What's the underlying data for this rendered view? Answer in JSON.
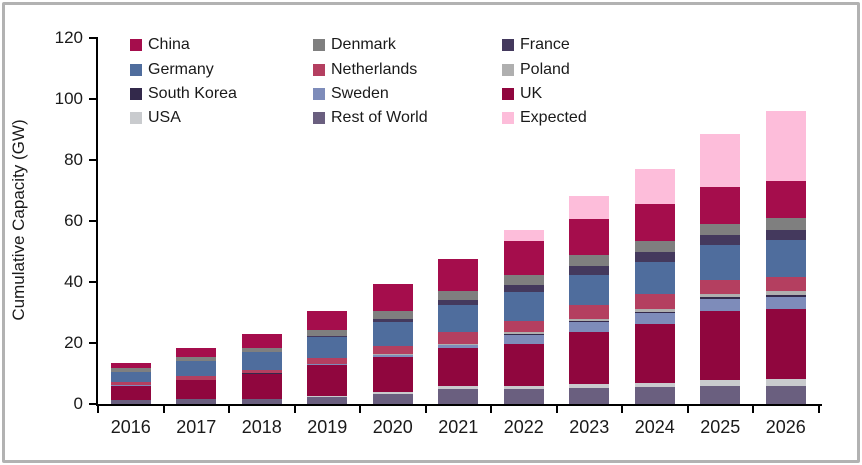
{
  "figure": {
    "background": "#ffffff",
    "border_color": "#b2b2b2"
  },
  "chart_data": {
    "type": "bar",
    "stacked": true,
    "title": "",
    "xlabel": "",
    "ylabel": "Cumulative Capacity (GW)",
    "ylim": [
      0,
      120
    ],
    "yticks": [
      0,
      20,
      40,
      60,
      80,
      100,
      120
    ],
    "grid": false,
    "legend_position": "top-left, 3 columns",
    "categories": [
      "2016",
      "2017",
      "2018",
      "2019",
      "2020",
      "2021",
      "2022",
      "2023",
      "2024",
      "2025",
      "2026"
    ],
    "series": [
      {
        "name": "China",
        "color": "#A50D4C",
        "values": [
          1.6,
          2.9,
          4.6,
          6.4,
          9.0,
          10.3,
          11.2,
          11.8,
          12.1,
          12.1,
          12.1
        ]
      },
      {
        "name": "Denmark",
        "color": "#7F7F7F",
        "values": [
          1.3,
          1.3,
          1.4,
          1.7,
          2.6,
          3.0,
          3.3,
          3.5,
          3.7,
          3.8,
          3.8
        ]
      },
      {
        "name": "France",
        "color": "#44395D",
        "values": [
          0,
          0,
          0,
          0.3,
          1.0,
          1.9,
          2.5,
          3.0,
          3.1,
          3.2,
          3.3
        ]
      },
      {
        "name": "Germany",
        "color": "#4F6D9D",
        "values": [
          3.4,
          5.0,
          6.0,
          7.0,
          7.7,
          8.8,
          9.3,
          9.9,
          10.6,
          11.5,
          12.1
        ]
      },
      {
        "name": "Netherlands",
        "color": "#B43F60",
        "values": [
          1.1,
          1.1,
          1.1,
          2.0,
          2.8,
          3.8,
          3.8,
          4.3,
          4.9,
          4.7,
          4.7
        ]
      },
      {
        "name": "Poland",
        "color": "#AFAFAF",
        "values": [
          0,
          0,
          0,
          0,
          0.1,
          0.3,
          0.6,
          0.8,
          0.8,
          1.0,
          1.2
        ]
      },
      {
        "name": "South Korea",
        "color": "#33294B",
        "values": [
          0,
          0.1,
          0.1,
          0.1,
          0.1,
          0.2,
          0.3,
          0.4,
          0.6,
          0.6,
          0.8
        ]
      },
      {
        "name": "Sweden",
        "color": "#7E8CBA",
        "values": [
          0.2,
          0.2,
          0.2,
          0.3,
          0.7,
          0.8,
          2.9,
          3.3,
          3.5,
          4.0,
          4.0
        ]
      },
      {
        "name": "UK",
        "color": "#90063E",
        "values": [
          4.6,
          6.0,
          8.0,
          10.2,
          11.4,
          12.6,
          13.7,
          17.0,
          19.4,
          22.4,
          22.8
        ]
      },
      {
        "name": "USA",
        "color": "#C9CBCE",
        "values": [
          0.1,
          0.1,
          0.1,
          0.3,
          0.6,
          0.9,
          1.2,
          1.3,
          1.4,
          1.9,
          2.2
        ]
      },
      {
        "name": "Rest of World",
        "color": "#6A5F7F",
        "values": [
          1.2,
          1.6,
          1.6,
          2.2,
          3.4,
          4.9,
          4.8,
          5.2,
          5.4,
          6.0,
          6.0
        ]
      },
      {
        "name": "Expected",
        "color": "#FDBDDA",
        "values": [
          0,
          0,
          0,
          0,
          0,
          0,
          3.6,
          7.6,
          11.5,
          17.3,
          23.2
        ]
      }
    ],
    "stack_order_bottom_to_top": [
      "Rest of World",
      "USA",
      "UK",
      "Sweden",
      "South Korea",
      "Poland",
      "Netherlands",
      "Germany",
      "France",
      "Denmark",
      "China",
      "Expected"
    ]
  }
}
